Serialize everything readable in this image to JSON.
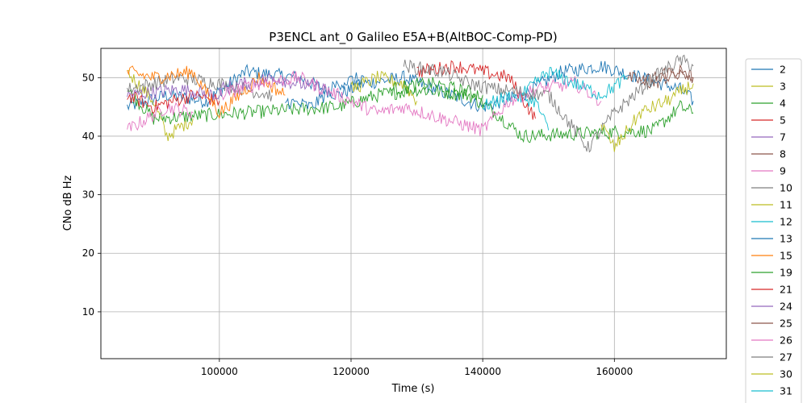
{
  "chart_data": {
    "type": "line",
    "title": "P3ENCL ant_0 Galileo E5A+B(AltBOC-Comp-PD)",
    "xlabel": "Time (s)",
    "ylabel": "CNo dB Hz",
    "xlim": [
      82000,
      177000
    ],
    "ylim": [
      2,
      55
    ],
    "xticks": [
      100000,
      120000,
      140000,
      160000
    ],
    "xtick_labels": [
      "100000",
      "120000",
      "140000",
      "160000"
    ],
    "yticks": [
      10,
      20,
      30,
      40,
      50
    ],
    "ytick_labels": [
      "10",
      "20",
      "30",
      "40",
      "50"
    ],
    "grid": true,
    "legend_position": "outside-right",
    "series": [
      {
        "name": "2",
        "color": "#1f77b4",
        "x": [
          86000,
          92000,
          98000,
          104000,
          112000,
          118000,
          122000,
          128000,
          140000,
          146000,
          152000,
          158000,
          164000,
          170000,
          172000
        ],
        "y": [
          45,
          47,
          46,
          51,
          50,
          47,
          49,
          50,
          45,
          47,
          51,
          52,
          50,
          48,
          46
        ]
      },
      {
        "name": "3",
        "color": "#bcbd22",
        "x": [
          86000,
          90000,
          92000,
          96000
        ],
        "y": [
          51,
          46,
          40,
          43
        ]
      },
      {
        "name": "4",
        "color": "#2ca02c",
        "x": [
          86000,
          90000,
          104000,
          118000,
          124000,
          130000,
          138000,
          142000,
          146000,
          166000,
          170000,
          172000
        ],
        "y": [
          48,
          43,
          44,
          45,
          47,
          48,
          47,
          44,
          40,
          41,
          45,
          44
        ]
      },
      {
        "name": "5",
        "color": "#d62728",
        "x": [
          86000,
          90000,
          96000,
          100000
        ],
        "y": [
          47,
          45,
          47,
          46
        ]
      },
      {
        "name": "7",
        "color": "#9467bd",
        "x": [
          86000,
          94000,
          100000
        ],
        "y": [
          47,
          48,
          47
        ]
      },
      {
        "name": "8",
        "color": "#8c564b",
        "x": [
          162000,
          166000,
          170000,
          172000
        ],
        "y": [
          50,
          49,
          51,
          50
        ]
      },
      {
        "name": "9",
        "color": "#e377c2",
        "x": [
          86000,
          92000,
          96000
        ],
        "y": [
          41,
          45,
          44
        ]
      },
      {
        "name": "10",
        "color": "#7f7f7f",
        "x": [
          86000,
          90000,
          94000,
          100000,
          104000,
          108000
        ],
        "y": [
          48,
          49,
          50,
          49,
          48,
          47
        ]
      },
      {
        "name": "11",
        "color": "#bcbd22",
        "x": [
          120000,
          124000,
          128000,
          130000
        ],
        "y": [
          48,
          50,
          49,
          46
        ]
      },
      {
        "name": "12",
        "color": "#17becf",
        "x": [
          140000,
          144000,
          148000,
          150000
        ],
        "y": [
          45,
          47,
          46,
          41
        ]
      },
      {
        "name": "13",
        "color": "#1f77b4",
        "x": [
          110000,
          114000,
          118000,
          122000
        ],
        "y": [
          46,
          45,
          49,
          50
        ]
      },
      {
        "name": "15",
        "color": "#ff7f0e",
        "x": [
          86000,
          90000,
          96000,
          100000,
          106000,
          110000
        ],
        "y": [
          51,
          50,
          51,
          44,
          50,
          47
        ]
      },
      {
        "name": "19",
        "color": "#2ca02c",
        "x": [
          126000,
          132000,
          136000,
          140000
        ],
        "y": [
          48,
          49,
          48,
          47
        ]
      },
      {
        "name": "21",
        "color": "#d62728",
        "x": [
          130000,
          136000,
          140000,
          144000,
          148000
        ],
        "y": [
          51,
          52,
          51,
          50,
          43
        ]
      },
      {
        "name": "24",
        "color": "#9467bd",
        "x": [
          100000,
          104000,
          108000,
          112000,
          116000
        ],
        "y": [
          48,
          49,
          50,
          49,
          48
        ]
      },
      {
        "name": "25",
        "color": "#8c564b",
        "x": [
          164000,
          168000,
          172000
        ],
        "y": [
          49,
          51,
          50
        ]
      },
      {
        "name": "26",
        "color": "#e377c2",
        "x": [
          100000,
          106000,
          112000,
          116000,
          120000,
          124000,
          128000,
          140000,
          144000,
          148000,
          154000,
          158000
        ],
        "y": [
          47,
          49,
          50,
          48,
          46,
          44,
          45,
          41,
          46,
          48,
          49,
          46
        ]
      },
      {
        "name": "27",
        "color": "#7f7f7f",
        "x": [
          128000,
          134000,
          138000,
          142000,
          150000,
          156000,
          160000,
          166000,
          170000,
          172000
        ],
        "y": [
          52,
          51,
          49,
          48,
          47,
          38,
          44,
          50,
          53,
          52
        ]
      },
      {
        "name": "30",
        "color": "#bcbd22",
        "x": [
          158000,
          160000,
          164000,
          168000,
          172000
        ],
        "y": [
          42,
          38,
          44,
          46,
          49
        ]
      },
      {
        "name": "31",
        "color": "#17becf",
        "x": [
          146000,
          150000,
          154000,
          158000,
          162000
        ],
        "y": [
          47,
          51,
          49,
          47,
          50
        ]
      }
    ]
  }
}
